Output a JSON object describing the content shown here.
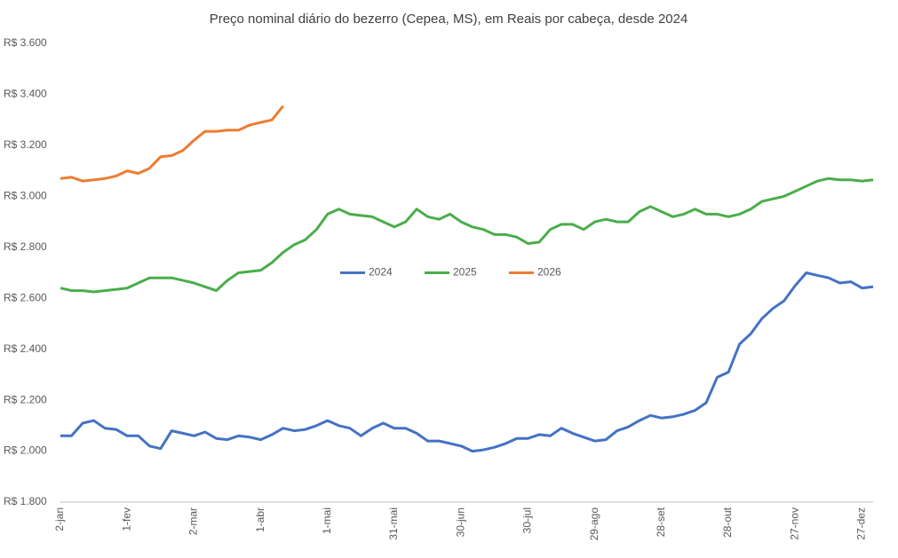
{
  "chart_data": {
    "type": "line",
    "title": "Preço nominal diário do bezerro (Cepea, MS), em Reais por cabeça, desde 2024",
    "categories": [
      "2-jan",
      null,
      null,
      null,
      null,
      null,
      "1-fev",
      null,
      null,
      null,
      null,
      null,
      "2-mar",
      null,
      null,
      null,
      null,
      null,
      "1-abr",
      null,
      null,
      null,
      null,
      null,
      "1-mai",
      null,
      null,
      null,
      null,
      null,
      "31-mai",
      null,
      null,
      null,
      null,
      null,
      "30-jun",
      null,
      null,
      null,
      null,
      null,
      "30-jul",
      null,
      null,
      null,
      null,
      null,
      "29-ago",
      null,
      null,
      null,
      null,
      null,
      "28-set",
      null,
      null,
      null,
      null,
      null,
      "28-out",
      null,
      null,
      null,
      null,
      null,
      "27-nov",
      null,
      null,
      null,
      null,
      null,
      "27-dez",
      null
    ],
    "series": [
      {
        "name": "2024",
        "color": "#4472c4",
        "values": [
          2060,
          2060,
          2110,
          2120,
          2090,
          2085,
          2060,
          2060,
          2020,
          2010,
          2080,
          2070,
          2060,
          2075,
          2050,
          2045,
          2060,
          2055,
          2045,
          2065,
          2090,
          2080,
          2085,
          2100,
          2120,
          2100,
          2090,
          2060,
          2090,
          2110,
          2090,
          2090,
          2070,
          2040,
          2040,
          2030,
          2020,
          2000,
          2005,
          2015,
          2030,
          2050,
          2050,
          2065,
          2060,
          2090,
          2070,
          2055,
          2040,
          2045,
          2080,
          2095,
          2120,
          2140,
          2130,
          2135,
          2145,
          2160,
          2190,
          2290,
          2310,
          2420,
          2460,
          2520,
          2560,
          2590,
          2650,
          2700,
          2690,
          2680,
          2660,
          2665,
          2640,
          2645
        ]
      },
      {
        "name": "2025",
        "color": "#4aad4a",
        "values": [
          2640,
          2630,
          2630,
          2625,
          2630,
          2635,
          2640,
          2660,
          2680,
          2680,
          2680,
          2670,
          2660,
          2645,
          2630,
          2670,
          2700,
          2705,
          2710,
          2740,
          2780,
          2810,
          2830,
          2870,
          2930,
          2950,
          2930,
          2925,
          2920,
          2900,
          2880,
          2900,
          2950,
          2920,
          2910,
          2930,
          2900,
          2880,
          2870,
          2850,
          2850,
          2840,
          2815,
          2820,
          2870,
          2890,
          2890,
          2870,
          2900,
          2910,
          2900,
          2900,
          2940,
          2960,
          2940,
          2920,
          2930,
          2950,
          2930,
          2930,
          2920,
          2930,
          2950,
          2980,
          2990,
          3000,
          3020,
          3040,
          3060,
          3070,
          3065,
          3065,
          3060,
          3065
        ]
      },
      {
        "name": "2026",
        "color": "#ed7d31",
        "values": [
          3070,
          3075,
          3060,
          3065,
          3070,
          3080,
          3100,
          3090,
          3110,
          3155,
          3160,
          3180,
          3220,
          3255,
          3255,
          3260,
          3260,
          3280,
          3290,
          3300,
          3355,
          null,
          null,
          null,
          null,
          null,
          null,
          null,
          null,
          null,
          null,
          null,
          null,
          null,
          null,
          null,
          null,
          null,
          null,
          null,
          null,
          null,
          null,
          null,
          null,
          null,
          null,
          null,
          null,
          null,
          null,
          null,
          null,
          null,
          null,
          null,
          null,
          null,
          null,
          null,
          null,
          null,
          null,
          null,
          null,
          null,
          null,
          null,
          null,
          null,
          null,
          null,
          null,
          null
        ]
      }
    ],
    "ylim": [
      1800,
      3600
    ],
    "yticks": [
      {
        "value": 1800,
        "label": "R$ 1.800"
      },
      {
        "value": 2000,
        "label": "R$ 2.000"
      },
      {
        "value": 2200,
        "label": "R$ 2.200"
      },
      {
        "value": 2400,
        "label": "R$ 2.400"
      },
      {
        "value": 2600,
        "label": "R$ 2.600"
      },
      {
        "value": 2800,
        "label": "R$ 2.800"
      },
      {
        "value": 3000,
        "label": "R$ 3.000"
      },
      {
        "value": 3200,
        "label": "R$ 3.200"
      },
      {
        "value": 3400,
        "label": "R$ 3.400"
      },
      {
        "value": 3600,
        "label": "R$ 3.600"
      }
    ],
    "grid": false,
    "legend_position": "center"
  }
}
